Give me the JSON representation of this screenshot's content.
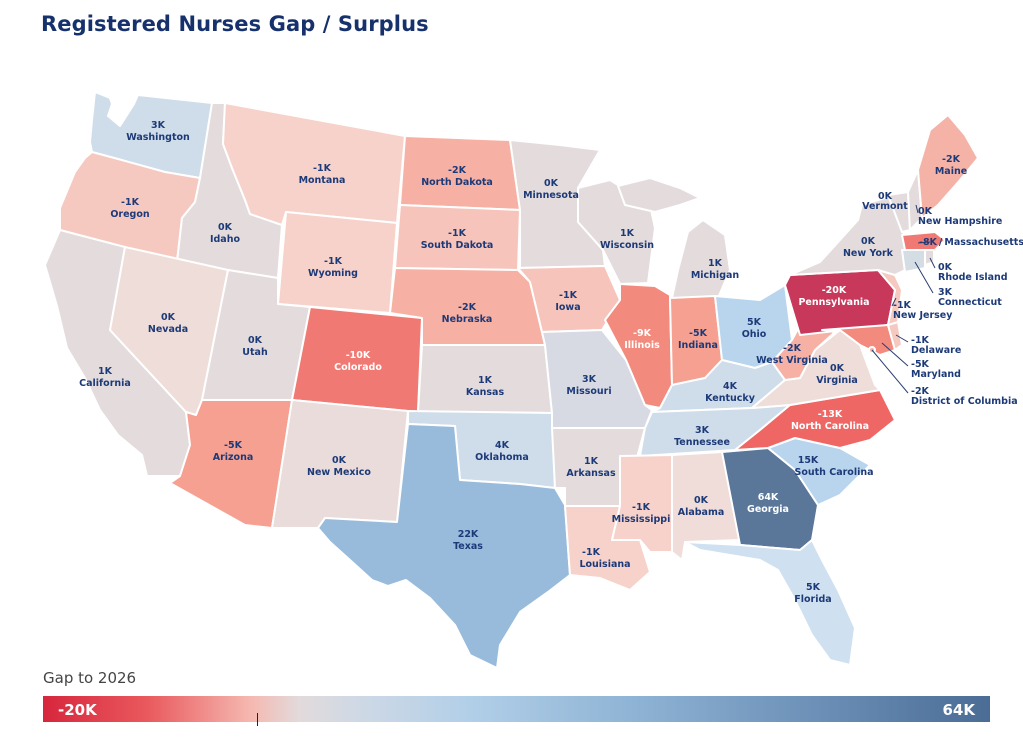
{
  "title": "Registered Nurses Gap / Surplus",
  "legend": {
    "title": "Gap to 2026",
    "min_label": "-20K",
    "max_label": "64K",
    "min": -20,
    "max": 64,
    "zero_marker": 0
  },
  "colors": {
    "deep_red": "#c8385a",
    "red": "#f07a73",
    "salmon": "#f5a090",
    "light_salmon": "#f6c9c0",
    "pale_pink": "#f0dcd8",
    "neutral": "#e4dcdc",
    "pale_blue": "#cfdcea",
    "light_blue": "#b9d5ee",
    "mid_blue": "#98bbdc",
    "dark_blue": "#5a7698",
    "title": "#16316b",
    "label": "#1d3a78"
  },
  "states": {
    "washington": {
      "name": "Washington",
      "value": "3K"
    },
    "oregon": {
      "name": "Oregon",
      "value": "-1K"
    },
    "california": {
      "name": "California",
      "value": "1K"
    },
    "idaho": {
      "name": "Idaho",
      "value": "0K"
    },
    "nevada": {
      "name": "Nevada",
      "value": "0K"
    },
    "montana": {
      "name": "Montana",
      "value": "-1K"
    },
    "wyoming": {
      "name": "Wyoming",
      "value": "-1K"
    },
    "utah": {
      "name": "Utah",
      "value": "0K"
    },
    "arizona": {
      "name": "Arizona",
      "value": "-5K"
    },
    "colorado": {
      "name": "Colorado",
      "value": "-10K"
    },
    "new_mexico": {
      "name": "New Mexico",
      "value": "0K"
    },
    "north_dakota": {
      "name": "North Dakota",
      "value": "-2K"
    },
    "south_dakota": {
      "name": "South Dakota",
      "value": "-1K"
    },
    "nebraska": {
      "name": "Nebraska",
      "value": "-2K"
    },
    "kansas": {
      "name": "Kansas",
      "value": "1K"
    },
    "oklahoma": {
      "name": "Oklahoma",
      "value": "4K"
    },
    "texas": {
      "name": "Texas",
      "value": "22K"
    },
    "minnesota": {
      "name": "Minnesota",
      "value": "0K"
    },
    "iowa": {
      "name": "Iowa",
      "value": "-1K"
    },
    "missouri": {
      "name": "Missouri",
      "value": "3K"
    },
    "arkansas": {
      "name": "Arkansas",
      "value": "1K"
    },
    "louisiana": {
      "name": "Louisiana",
      "value": "-1K"
    },
    "wisconsin": {
      "name": "Wisconsin",
      "value": "1K"
    },
    "illinois": {
      "name": "Illinois",
      "value": "-9K"
    },
    "michigan": {
      "name": "Michigan",
      "value": "1K"
    },
    "indiana": {
      "name": "Indiana",
      "value": "-5K"
    },
    "ohio": {
      "name": "Ohio",
      "value": "5K"
    },
    "kentucky": {
      "name": "Kentucky",
      "value": "4K"
    },
    "tennessee": {
      "name": "Tennessee",
      "value": "3K"
    },
    "mississippi": {
      "name": "Mississippi",
      "value": "-1K"
    },
    "alabama": {
      "name": "Alabama",
      "value": "0K"
    },
    "georgia": {
      "name": "Georgia",
      "value": "64K"
    },
    "florida": {
      "name": "Florida",
      "value": "5K"
    },
    "south_carolina": {
      "name": "South Carolina",
      "value": "15K"
    },
    "north_carolina": {
      "name": "North Carolina",
      "value": "-13K"
    },
    "virginia": {
      "name": "Virginia",
      "value": "0K"
    },
    "west_virginia": {
      "name": "West Virginia",
      "value": "-2K"
    },
    "pennsylvania": {
      "name": "Pennsylvania",
      "value": "-20K"
    },
    "new_york": {
      "name": "New York",
      "value": "0K"
    },
    "vermont": {
      "name": "Vermont",
      "value": "0K"
    },
    "new_hampshire": {
      "name": "New Hampshire",
      "value": "0K"
    },
    "maine": {
      "name": "Maine",
      "value": "-2K"
    },
    "massachusetts": {
      "name": "Massachusetts",
      "value": "-8K"
    },
    "rhode_island": {
      "name": "Rhode Island",
      "value": "0K"
    },
    "connecticut": {
      "name": "Connecticut",
      "value": "3K"
    },
    "new_jersey": {
      "name": "New Jersey",
      "value": "-1K"
    },
    "delaware": {
      "name": "Delaware",
      "value": "-1K"
    },
    "maryland": {
      "name": "Maryland",
      "value": "-5K"
    },
    "district_of_columbia": {
      "name": "District of Columbia",
      "value": "-2K"
    }
  }
}
